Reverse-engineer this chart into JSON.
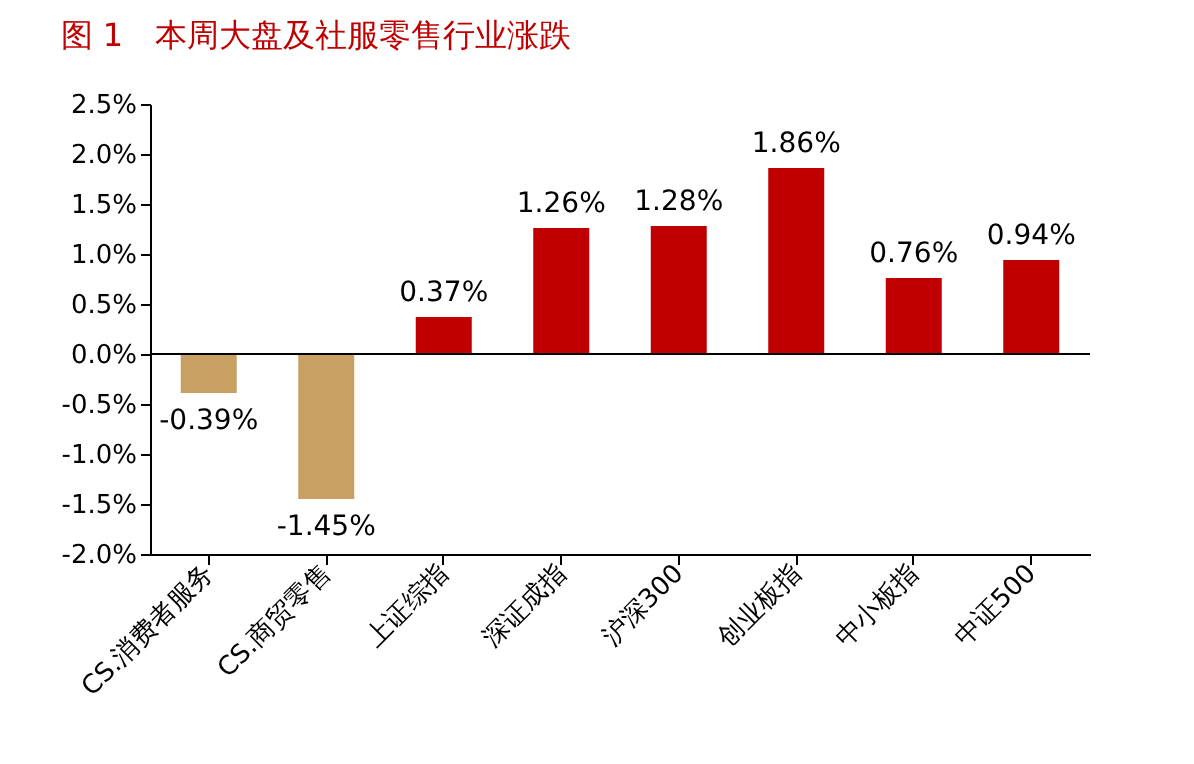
{
  "chart_data": {
    "type": "bar",
    "title": "图 1　本周大盘及社服零售行业涨跌",
    "categories": [
      "CS.消费者服务",
      "CS.商贸零售",
      "上证综指",
      "深证成指",
      "沪深300",
      "创业板指",
      "中小板指",
      "中证500"
    ],
    "values": [
      -0.39,
      -1.45,
      0.37,
      1.26,
      1.28,
      1.86,
      0.76,
      0.94
    ],
    "colors": [
      "#c9a063",
      "#c9a063",
      "#c00000",
      "#c00000",
      "#c00000",
      "#c00000",
      "#c00000",
      "#c00000"
    ],
    "value_labels": [
      "-0.39%",
      "-1.45%",
      "0.37%",
      "1.26%",
      "1.28%",
      "1.86%",
      "0.76%",
      "0.94%"
    ],
    "ylim": [
      -2.0,
      2.5
    ],
    "yticks": [
      {
        "value": -2.0,
        "label": "-2.0%"
      },
      {
        "value": -1.5,
        "label": "-1.5%"
      },
      {
        "value": -1.0,
        "label": "-1.0%"
      },
      {
        "value": -0.5,
        "label": "-0.5%"
      },
      {
        "value": 0.0,
        "label": "0.0%"
      },
      {
        "value": 0.5,
        "label": "0.5%"
      },
      {
        "value": 1.0,
        "label": "1.0%"
      },
      {
        "value": 1.5,
        "label": "1.5%"
      },
      {
        "value": 2.0,
        "label": "2.0%"
      },
      {
        "value": 2.5,
        "label": "2.5%"
      }
    ],
    "ref_lines": [
      {
        "axis": "y",
        "value": 0,
        "color": "#000000"
      }
    ],
    "grid": false
  }
}
